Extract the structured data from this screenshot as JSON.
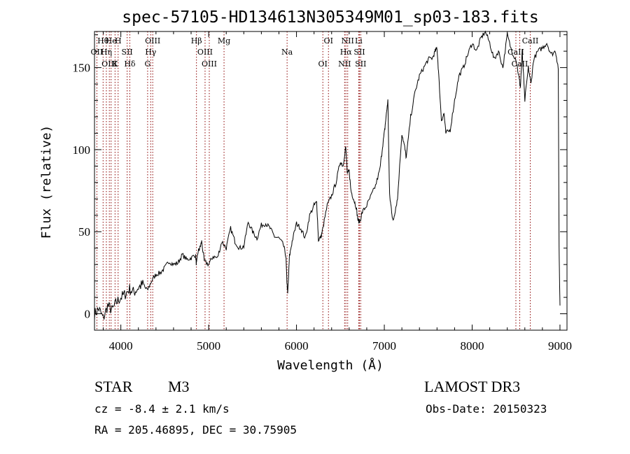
{
  "chart_data": {
    "type": "line",
    "title": "spec-57105-HD134613N305349M01_sp03-183.fits",
    "xlabel": "Wavelength (Å)",
    "ylabel": "Flux (relative)",
    "xlim": [
      3700,
      9080
    ],
    "ylim": [
      -10,
      172
    ],
    "x_ticks": [
      4000,
      5000,
      6000,
      7000,
      8000,
      9000
    ],
    "y_ticks": [
      0,
      50,
      100,
      150
    ],
    "series": [
      {
        "name": "spectrum",
        "x": [
          3700,
          3750,
          3800,
          3850,
          3900,
          3950,
          4000,
          4050,
          4100,
          4150,
          4200,
          4250,
          4300,
          4350,
          4400,
          4450,
          4500,
          4550,
          4600,
          4650,
          4700,
          4750,
          4800,
          4850,
          4860,
          4880,
          4900,
          4920,
          4950,
          5000,
          5050,
          5100,
          5150,
          5200,
          5250,
          5300,
          5350,
          5400,
          5450,
          5500,
          5550,
          5600,
          5650,
          5700,
          5750,
          5800,
          5850,
          5880,
          5890,
          5900,
          5920,
          5950,
          6000,
          6050,
          6100,
          6150,
          6200,
          6230,
          6250,
          6280,
          6300,
          6350,
          6400,
          6450,
          6500,
          6530,
          6560,
          6580,
          6600,
          6620,
          6650,
          6680,
          6700,
          6720,
          6750,
          6800,
          6850,
          6900,
          6950,
          6980,
          7000,
          7020,
          7040,
          7060,
          7080,
          7100,
          7120,
          7150,
          7200,
          7230,
          7250,
          7300,
          7350,
          7400,
          7450,
          7500,
          7550,
          7580,
          7600,
          7620,
          7650,
          7680,
          7700,
          7750,
          7800,
          7850,
          7900,
          7950,
          8000,
          8050,
          8100,
          8150,
          8200,
          8250,
          8300,
          8350,
          8400,
          8450,
          8500,
          8530,
          8550,
          8570,
          8600,
          8640,
          8670,
          8700,
          8750,
          8800,
          8850,
          8900,
          8950,
          8980,
          8990,
          9000
        ],
        "y": [
          0,
          3,
          -3,
          5,
          2,
          7,
          10,
          12,
          15,
          13,
          16,
          18,
          14,
          20,
          24,
          25,
          28,
          32,
          30,
          31,
          36,
          33,
          34,
          36,
          30,
          38,
          40,
          44,
          32,
          30,
          35,
          34,
          44,
          40,
          52,
          44,
          40,
          41,
          56,
          50,
          46,
          54,
          55,
          52,
          47,
          46,
          42,
          35,
          20,
          12,
          35,
          44,
          55,
          52,
          46,
          60,
          66,
          68,
          45,
          47,
          52,
          66,
          72,
          80,
          93,
          90,
          102,
          85,
          87,
          75,
          70,
          65,
          57,
          56,
          62,
          66,
          72,
          78,
          88,
          102,
          110,
          120,
          130,
          72,
          64,
          56,
          62,
          70,
          110,
          102,
          95,
          120,
          135,
          145,
          150,
          155,
          156,
          160,
          162,
          145,
          118,
          122,
          110,
          112,
          130,
          145,
          150,
          158,
          165,
          160,
          168,
          172,
          165,
          155,
          160,
          150,
          170,
          160,
          155,
          145,
          138,
          160,
          130,
          150,
          140,
          155,
          160,
          162,
          165,
          158,
          160,
          150,
          40,
          5
        ]
      }
    ],
    "spectral_lines": [
      {
        "label": "Hθ",
        "wl": 3798
      },
      {
        "label": "OII",
        "wl": 3727
      },
      {
        "label": "OIII",
        "wl": 3869
      },
      {
        "label": "He",
        "wl": 3889
      },
      {
        "label": "Hη",
        "wl": 3835
      },
      {
        "label": "K",
        "wl": 3934
      },
      {
        "label": "H",
        "wl": 3969
      },
      {
        "label": "SII",
        "wl": 4072
      },
      {
        "label": "Hδ",
        "wl": 4102
      },
      {
        "label": "OIII",
        "wl": 4363
      },
      {
        "label": "Hγ",
        "wl": 4340
      },
      {
        "label": "G",
        "wl": 4305
      },
      {
        "label": "Hβ",
        "wl": 4861
      },
      {
        "label": "OIII",
        "wl": 4959
      },
      {
        "label": "OIII",
        "wl": 5007
      },
      {
        "label": "Mg",
        "wl": 5175
      },
      {
        "label": "Na",
        "wl": 5893
      },
      {
        "label": "OI",
        "wl": 6300
      },
      {
        "label": "OI",
        "wl": 6364
      },
      {
        "label": "Hα",
        "wl": 6563
      },
      {
        "label": "NII",
        "wl": 6548
      },
      {
        "label": "NII",
        "wl": 6583
      },
      {
        "label": "SII",
        "wl": 6717
      },
      {
        "label": "SII",
        "wl": 6731
      },
      {
        "label": "Li",
        "wl": 6708
      },
      {
        "label": "CaII",
        "wl": 8498
      },
      {
        "label": "CaII",
        "wl": 8542
      },
      {
        "label": "CaII",
        "wl": 8662
      }
    ],
    "annotations": {
      "class": "STAR",
      "subclass": "M3",
      "survey": "LAMOST DR3",
      "cz": "cz = -8.4 ± 2.1 km/s",
      "obs_date": "Obs-Date: 20150323",
      "coords": "RA = 205.46895, DEC =  30.75905"
    },
    "colors": {
      "line": "#000000",
      "marker": "#8b0000",
      "frame": "#000000"
    }
  }
}
